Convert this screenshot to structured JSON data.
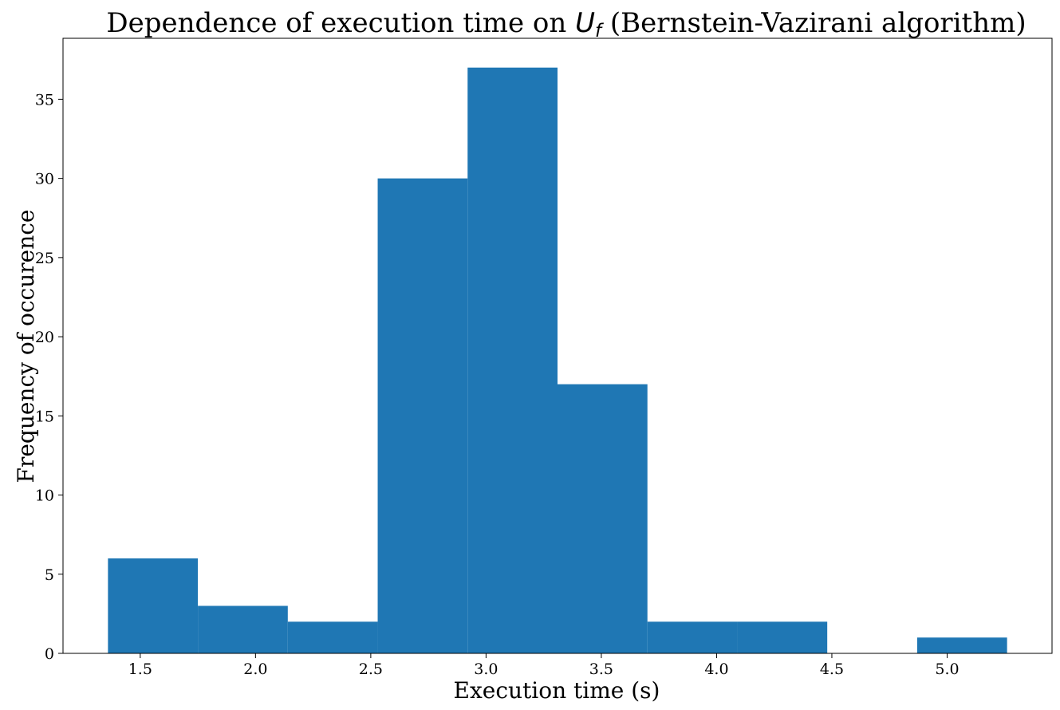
{
  "chart_data": {
    "type": "bar",
    "title": {
      "prefix": "Dependence of execution time on ",
      "math_main": "U",
      "math_sub": "f",
      "suffix": " (Bernstein-Vazirani algorithm)"
    },
    "xlabel": "Execution time (s)",
    "ylabel": "Frequency of occurence",
    "bin_edges": [
      1.36,
      1.75,
      2.14,
      2.53,
      2.92,
      3.31,
      3.7,
      4.09,
      4.48,
      4.87,
      5.26
    ],
    "values": [
      6,
      3,
      2,
      30,
      37,
      17,
      2,
      2,
      0,
      1
    ],
    "xlim": [
      1.165,
      5.455
    ],
    "ylim": [
      0,
      38.85
    ],
    "xticks": [
      "1.5",
      "2.0",
      "2.5",
      "3.0",
      "3.5",
      "4.0",
      "4.5",
      "5.0"
    ],
    "yticks": [
      "0",
      "5",
      "10",
      "15",
      "20",
      "25",
      "30",
      "35"
    ],
    "bar_color": "#1f77b4",
    "grid": false,
    "legend": "none"
  }
}
